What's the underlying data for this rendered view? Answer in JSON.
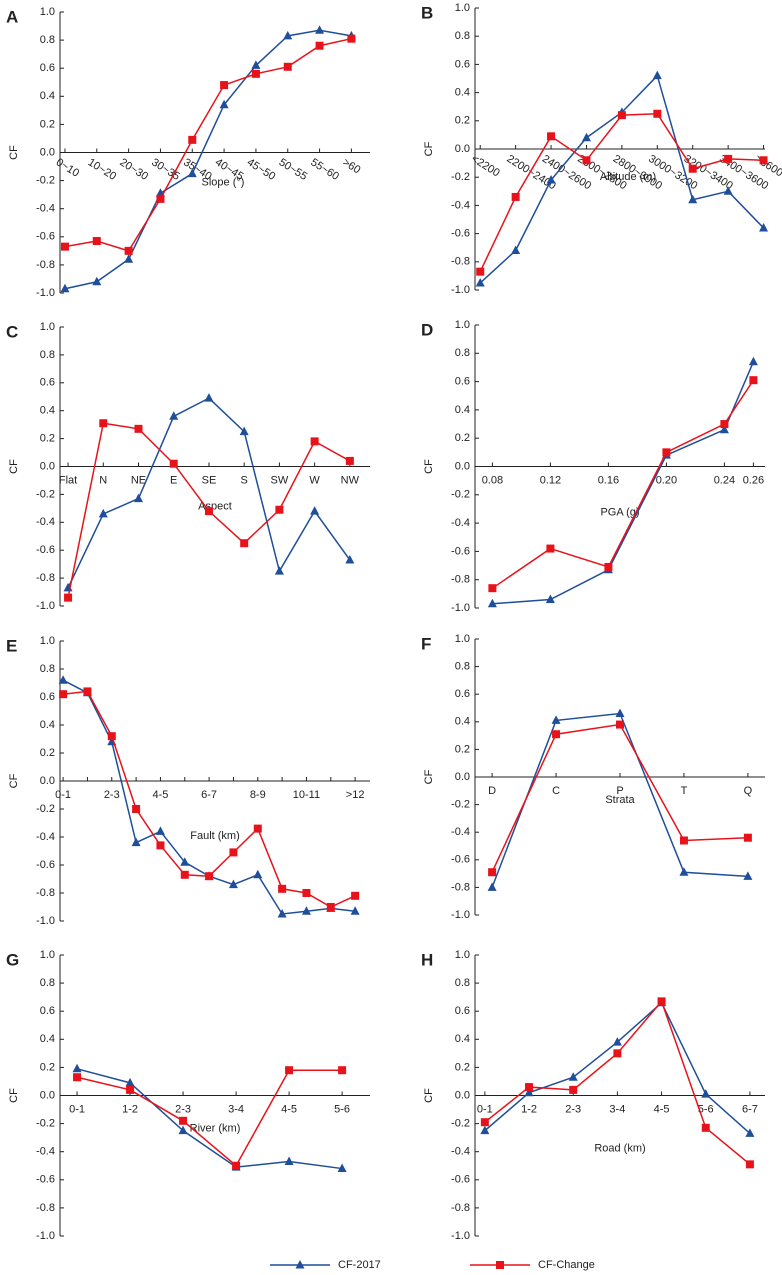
{
  "legend": {
    "series": [
      {
        "name": "CF-2017",
        "color": "#1f4e9a",
        "marker": "triangle"
      },
      {
        "name": "CF-Change",
        "color": "#e8121b",
        "marker": "square"
      }
    ]
  },
  "chart_data": [
    {
      "type": "line",
      "label": "A",
      "ylabel": "CF",
      "xlabel": "Slope (°)",
      "categories": [
        "0~10",
        "10~20",
        "20~30",
        "30~35",
        "35~40",
        "40~45",
        "45~50",
        "50~55",
        "55~60",
        ">60"
      ],
      "series": [
        {
          "values": [
            -0.97,
            -0.92,
            -0.76,
            -0.29,
            -0.15,
            0.34,
            0.62,
            0.83,
            0.87,
            0.83
          ]
        },
        {
          "values": [
            -0.67,
            -0.63,
            -0.7,
            -0.33,
            0.09,
            0.48,
            0.56,
            0.61,
            0.76,
            0.81
          ]
        }
      ],
      "ylim": [
        -1,
        1
      ],
      "yticks": [
        {
          "value": 1,
          "label": "1.0"
        },
        0.8,
        0.6,
        0.4,
        0.2,
        {
          "value": 0,
          "label": "0.0"
        },
        -0.2,
        -0.4,
        -0.6,
        -0.8,
        {
          "value": -1,
          "label": "-1.0"
        }
      ]
    },
    {
      "type": "line",
      "label": "B",
      "ylabel": "CF",
      "xlabel": "Altitude (m)",
      "categories": [
        "<2200",
        "2200~2400",
        "2400~2600",
        "2600~2800",
        "2800~3000",
        "3000~3200",
        "3200~3400",
        "3400~3600",
        ">3600"
      ],
      "series": [
        {
          "values": [
            -0.95,
            -0.72,
            -0.22,
            0.08,
            0.26,
            0.52,
            -0.36,
            -0.3,
            -0.56
          ]
        },
        {
          "values": [
            -0.87,
            -0.34,
            0.09,
            -0.08,
            0.24,
            0.25,
            -0.14,
            -0.07,
            -0.08
          ]
        }
      ],
      "ylim": [
        -1,
        1
      ],
      "yticks": [
        {
          "value": 1,
          "label": "1.0"
        },
        0.8,
        0.6,
        0.4,
        0.2,
        {
          "value": 0,
          "label": "0.0"
        },
        -0.2,
        -0.4,
        -0.6,
        -0.8,
        {
          "value": -1,
          "label": "-1.0"
        }
      ]
    },
    {
      "type": "line",
      "label": "C",
      "ylabel": "CF",
      "xlabel": "Aspect",
      "categories": [
        "Flat",
        "N",
        "NE",
        "E",
        "SE",
        "S",
        "SW",
        "W",
        "NW"
      ],
      "series": [
        {
          "values": [
            -0.87,
            -0.34,
            -0.23,
            0.36,
            0.49,
            0.25,
            -0.75,
            -0.32,
            -0.67
          ]
        },
        {
          "values": [
            -0.94,
            0.31,
            0.27,
            0.02,
            -0.32,
            -0.55,
            -0.31,
            0.18,
            0.04
          ]
        }
      ],
      "ylim": [
        -1,
        1
      ],
      "yticks": [
        {
          "value": 1,
          "label": "1.0"
        },
        0.8,
        0.6,
        0.4,
        0.2,
        {
          "value": 0,
          "label": "0.0"
        },
        -0.2,
        -0.4,
        -0.6,
        -0.8,
        {
          "value": -1,
          "label": "-1.0"
        }
      ]
    },
    {
      "type": "xyline",
      "label": "D",
      "ylabel": "CF",
      "xlabel": "PGA (g)",
      "x": [
        0.08,
        0.12,
        0.16,
        0.2,
        0.24,
        0.26
      ],
      "series": [
        {
          "values": [
            -0.97,
            -0.94,
            -0.73,
            0.08,
            0.26,
            0.74
          ]
        },
        {
          "values": [
            -0.86,
            -0.58,
            -0.71,
            0.1,
            0.3,
            0.61
          ]
        }
      ],
      "xlim": [
        0.068,
        0.268
      ],
      "xticks": [
        0.08,
        0.12,
        0.16,
        {
          "value": 0.2,
          "label": "0.20"
        },
        0.24,
        0.26
      ],
      "ylim": [
        -1,
        1
      ],
      "yticks": [
        {
          "value": 1,
          "label": "1.0"
        },
        0.8,
        0.6,
        0.4,
        0.2,
        {
          "value": 0,
          "label": "0.0"
        },
        -0.2,
        -0.4,
        -0.6,
        -0.8,
        {
          "value": -1,
          "label": "-1.0"
        }
      ]
    },
    {
      "type": "line",
      "label": "E",
      "ylabel": "CF",
      "xlabel": "Fault (km)",
      "categories": [
        "0-1",
        null,
        "2-3",
        null,
        "4-5",
        null,
        "6-7",
        null,
        "8-9",
        null,
        "10-11",
        null,
        ">12"
      ],
      "series": [
        {
          "values": [
            0.72,
            0.63,
            0.28,
            -0.44,
            -0.36,
            -0.58,
            -0.68,
            -0.74,
            -0.67,
            -0.95,
            -0.93,
            -0.91,
            -0.93
          ]
        },
        {
          "values": [
            0.62,
            0.64,
            0.32,
            -0.2,
            -0.46,
            -0.67,
            -0.68,
            -0.51,
            -0.34,
            -0.77,
            -0.8,
            -0.9,
            -0.82
          ]
        }
      ],
      "ylim": [
        -1,
        1
      ],
      "yticks": [
        {
          "value": 1,
          "label": "1.0"
        },
        0.8,
        0.6,
        0.4,
        0.2,
        {
          "value": 0,
          "label": "0.0"
        },
        -0.2,
        -0.4,
        -0.6,
        -0.8,
        {
          "value": -1,
          "label": "-1.0"
        }
      ]
    },
    {
      "type": "line",
      "label": "F",
      "ylabel": "CF",
      "xlabel": "Strata",
      "categories": [
        "D",
        "C",
        "P",
        "T",
        "Q"
      ],
      "series": [
        {
          "values": [
            -0.8,
            0.41,
            0.46,
            -0.69,
            -0.72
          ]
        },
        {
          "values": [
            -0.69,
            0.31,
            0.38,
            -0.46,
            -0.44
          ]
        }
      ],
      "ylim": [
        -1,
        1
      ],
      "yticks": [
        {
          "value": 1,
          "label": "1.0"
        },
        0.8,
        0.6,
        0.4,
        0.2,
        {
          "value": 0,
          "label": "0.0"
        },
        -0.2,
        -0.4,
        -0.6,
        -0.8,
        {
          "value": -1,
          "label": "-1.0"
        }
      ]
    },
    {
      "type": "line",
      "label": "G",
      "ylabel": "CF",
      "xlabel": "River (km)",
      "categories": [
        "0-1",
        "1-2",
        "2-3",
        "3-4",
        "4-5",
        "5-6"
      ],
      "series": [
        {
          "values": [
            0.19,
            0.09,
            -0.25,
            -0.51,
            -0.47,
            -0.52
          ]
        },
        {
          "values": [
            0.13,
            0.04,
            -0.18,
            -0.5,
            0.18,
            0.18
          ]
        }
      ],
      "ylim": [
        -1,
        1
      ],
      "yticks": [
        {
          "value": 1,
          "label": "1.0"
        },
        0.8,
        0.6,
        0.4,
        0.2,
        {
          "value": 0,
          "label": "0.0"
        },
        -0.2,
        -0.4,
        -0.6,
        -0.8,
        {
          "value": -1,
          "label": "-1.0"
        }
      ]
    },
    {
      "type": "line",
      "label": "H",
      "ylabel": "CF",
      "xlabel": "Road (km)",
      "categories": [
        "0-1",
        "1-2",
        "2-3",
        "3-4",
        "4-5",
        "5-6",
        "6-7"
      ],
      "series": [
        {
          "values": [
            -0.25,
            0.02,
            0.13,
            0.38,
            0.66,
            0.01,
            -0.27
          ]
        },
        {
          "values": [
            -0.19,
            0.06,
            0.04,
            0.3,
            0.67,
            -0.23,
            -0.49
          ]
        }
      ],
      "ylim": [
        -1,
        1
      ],
      "yticks": [
        {
          "value": 1,
          "label": "1.0"
        },
        0.8,
        0.6,
        0.4,
        0.2,
        {
          "value": 0,
          "label": "0.0"
        },
        -0.2,
        -0.4,
        -0.6,
        -0.8,
        {
          "value": -1,
          "label": "-1.0"
        }
      ]
    }
  ]
}
